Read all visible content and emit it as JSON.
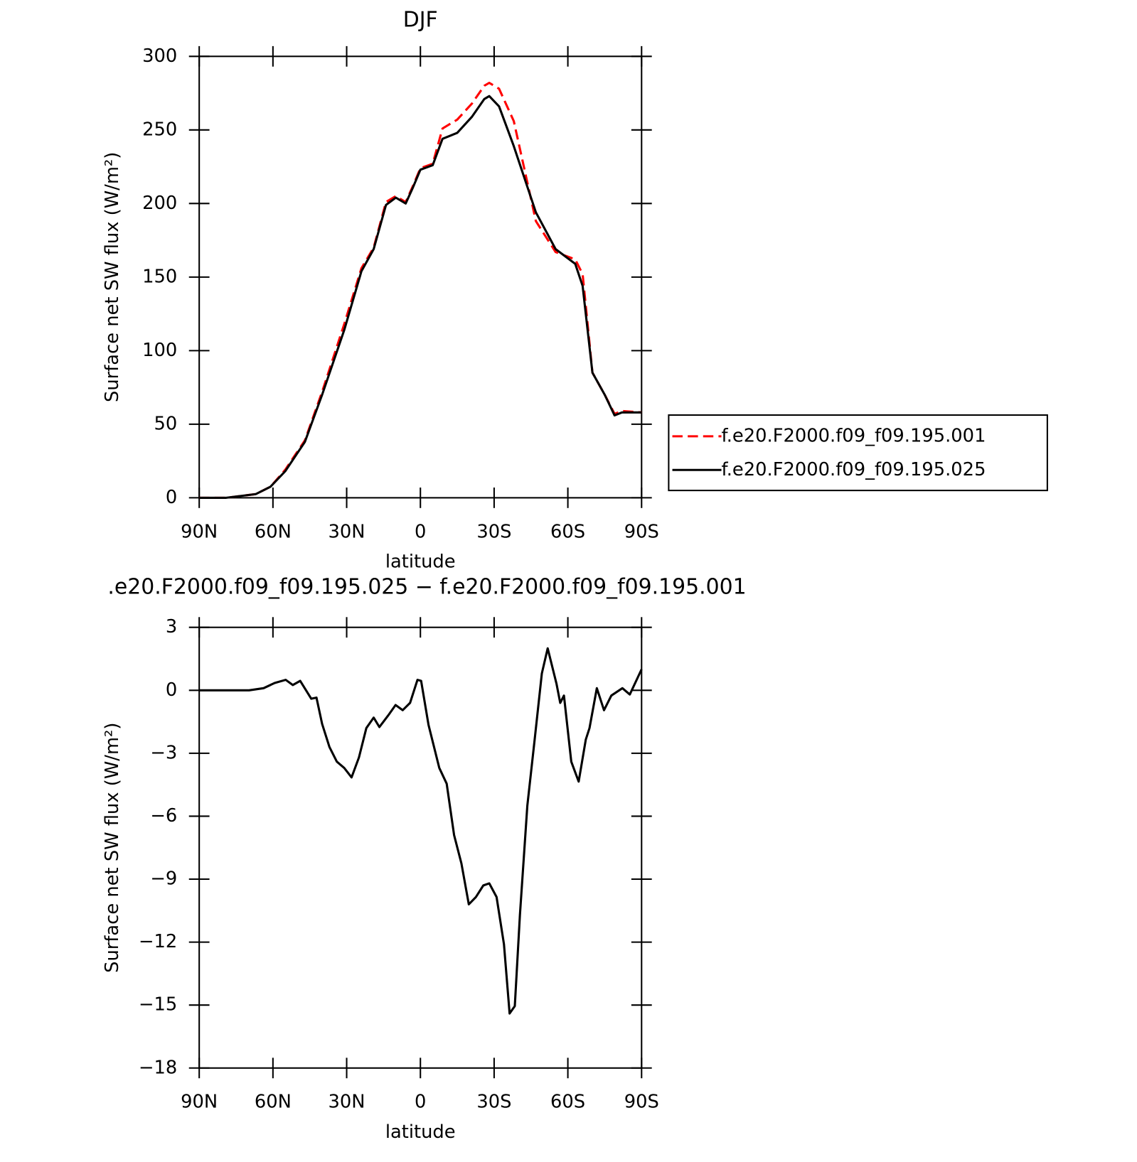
{
  "chart_data": [
    {
      "type": "line",
      "title": "DJF",
      "xlabel": "latitude",
      "ylabel": "Surface net SW flux (W/m²)",
      "x": [
        90,
        79,
        67,
        61,
        55,
        47,
        40,
        31,
        24,
        19,
        14,
        10,
        6,
        3,
        0,
        -5,
        -9,
        -15,
        -21,
        -26,
        -28,
        -32,
        -38,
        -47,
        -55,
        -63,
        -66,
        -70,
        -75,
        -79,
        -82,
        -90
      ],
      "series": [
        {
          "name": "f.e20.F2000.f09_f09.195.001",
          "color": "#ff0000",
          "line_style": "dashed",
          "values": [
            0,
            0,
            2.5,
            7.5,
            19,
            39,
            72,
            118,
            156,
            170,
            201,
            205,
            201,
            212,
            224,
            227,
            251,
            257,
            268,
            280,
            282,
            278,
            256,
            188,
            167,
            162,
            152,
            85,
            70,
            57,
            59,
            58
          ]
        },
        {
          "name": "f.e20.F2000.f09_f09.195.025",
          "color": "#000000",
          "line_style": "solid",
          "values": [
            0,
            0,
            2.5,
            7.5,
            18,
            38,
            70,
            114,
            154,
            169,
            199,
            204,
            200,
            211,
            223,
            226,
            244,
            248,
            259,
            271,
            273,
            266,
            239,
            194,
            169,
            159,
            144,
            85,
            70,
            56,
            58,
            58
          ]
        }
      ],
      "xlim": [
        90,
        -90
      ],
      "xticks": [
        {
          "value": 90,
          "label": "90N"
        },
        {
          "value": 60,
          "label": "60N"
        },
        {
          "value": 30,
          "label": "30N"
        },
        0,
        {
          "value": -30,
          "label": "30S"
        },
        {
          "value": -60,
          "label": "60S"
        },
        {
          "value": -90,
          "label": "90S"
        }
      ],
      "ylim": [
        0,
        300
      ],
      "yticks": [
        0,
        50,
        100,
        150,
        200,
        250,
        300
      ],
      "legend": "outside-right"
    },
    {
      "type": "line",
      "title": ".e20.F2000.f09_f09.195.025 − f.e20.F2000.f09_f09.195.001",
      "xlabel": "latitude",
      "ylabel": "Surface net SW flux (W/m²)",
      "x": [
        90,
        69.7,
        63.8,
        59.3,
        54.8,
        51.9,
        48.9,
        44.4,
        42.3,
        40,
        37,
        34,
        31,
        28,
        25,
        22,
        19,
        16.7,
        13.1,
        10.1,
        7.2,
        4.2,
        1.2,
        -0.3,
        -3.3,
        -7.7,
        -10.7,
        -13.7,
        -16.7,
        -19.7,
        -22.6,
        -25.6,
        -28,
        -31,
        -34,
        -36.3,
        -38.4,
        -40.5,
        -43.5,
        -46.5,
        -49.4,
        -51.8,
        -55.4,
        -56.9,
        -58.4,
        -61.4,
        -64.4,
        -67.3,
        -68.8,
        -71.8,
        -74.7,
        -77.7,
        -82.2,
        -85.2,
        -90
      ],
      "values": [
        0,
        0,
        0.1,
        0.35,
        0.5,
        0.25,
        0.45,
        -0.4,
        -0.35,
        -1.6,
        -2.7,
        -3.4,
        -3.7,
        -4.15,
        -3.2,
        -1.8,
        -1.3,
        -1.75,
        -1.2,
        -0.7,
        -0.95,
        -0.6,
        0.5,
        0.45,
        -1.65,
        -3.7,
        -4.45,
        -6.9,
        -8.25,
        -10.2,
        -9.85,
        -9.3,
        -9.2,
        -9.85,
        -12.1,
        -15.4,
        -15.05,
        -10.7,
        -5.5,
        -2.35,
        0.8,
        2.0,
        0.3,
        -0.6,
        -0.25,
        -3.4,
        -4.35,
        -2.35,
        -1.8,
        0.1,
        -0.95,
        -0.25,
        0.1,
        -0.2,
        1.0
      ],
      "color": "#000000",
      "xlim": [
        90,
        -90
      ],
      "xticks": [
        {
          "value": 90,
          "label": "90N"
        },
        {
          "value": 60,
          "label": "60N"
        },
        {
          "value": 30,
          "label": "30N"
        },
        0,
        {
          "value": -30,
          "label": "30S"
        },
        {
          "value": -60,
          "label": "60S"
        },
        {
          "value": -90,
          "label": "90S"
        }
      ],
      "ylim": [
        -18,
        3
      ],
      "yticks": [
        {
          "value": -18,
          "label": "−18"
        },
        {
          "value": -15,
          "label": "−15"
        },
        {
          "value": -12,
          "label": "−12"
        },
        {
          "value": -9,
          "label": "−9"
        },
        {
          "value": -6,
          "label": "−6"
        },
        {
          "value": -3,
          "label": "−3"
        },
        0,
        3
      ]
    }
  ]
}
